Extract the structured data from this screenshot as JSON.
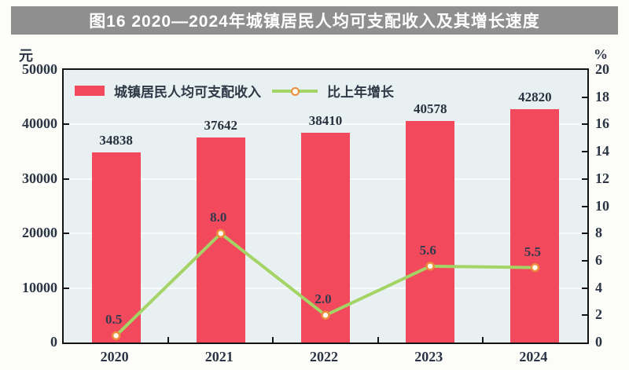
{
  "title": "图16 2020—2024年城镇居民人均可支配收入及其增长速度",
  "left_axis": {
    "unit": "元",
    "ticks": [
      "50000",
      "40000",
      "30000",
      "20000",
      "10000",
      "0"
    ],
    "min": 0,
    "max": 50000
  },
  "right_axis": {
    "unit": "%",
    "ticks": [
      "20",
      "18",
      "16",
      "14",
      "12",
      "10",
      "8",
      "6",
      "4",
      "2",
      "0"
    ],
    "min": 0,
    "max": 20
  },
  "legend": [
    {
      "label": "城镇居民人均可支配收入",
      "type": "bar"
    },
    {
      "label": "比上年增长",
      "type": "line"
    }
  ],
  "chart_data": {
    "type": "bar",
    "subtype": "bar+line combo",
    "title": "图16 2020—2024年城镇居民人均可支配收入及其增长速度",
    "categories": [
      "2020",
      "2021",
      "2022",
      "2023",
      "2024"
    ],
    "series": [
      {
        "name": "城镇居民人均可支配收入",
        "type": "bar",
        "axis": "left",
        "values": [
          34838,
          37642,
          38410,
          40578,
          42820
        ],
        "labels": [
          "34838",
          "37642",
          "38410",
          "40578",
          "42820"
        ]
      },
      {
        "name": "比上年增长",
        "type": "line",
        "axis": "right",
        "values": [
          0.5,
          8.0,
          2.0,
          5.6,
          5.5
        ],
        "labels": [
          "0.5",
          "8.0",
          "2.0",
          "5.6",
          "5.5"
        ]
      }
    ],
    "ylabel_left": "元",
    "ylabel_right": "%",
    "ylim_left": [
      0,
      50000
    ],
    "ylim_right": [
      0,
      20
    ],
    "grid": "horizontal, faint white lines every 10000",
    "legend_position": "top-left inside plot"
  },
  "colors": {
    "banner_bg": "#8f8f8f",
    "banner_text": "#ffffff",
    "bar": "#f2495c",
    "line": "#a3d465",
    "marker_ring": "#ee8c3e",
    "marker_fill": "#fffdf2",
    "plot_bg": "#e8f0f1",
    "plot_border": "#141414",
    "page_bg": "#fcfcf8",
    "text": "#2a3444"
  }
}
